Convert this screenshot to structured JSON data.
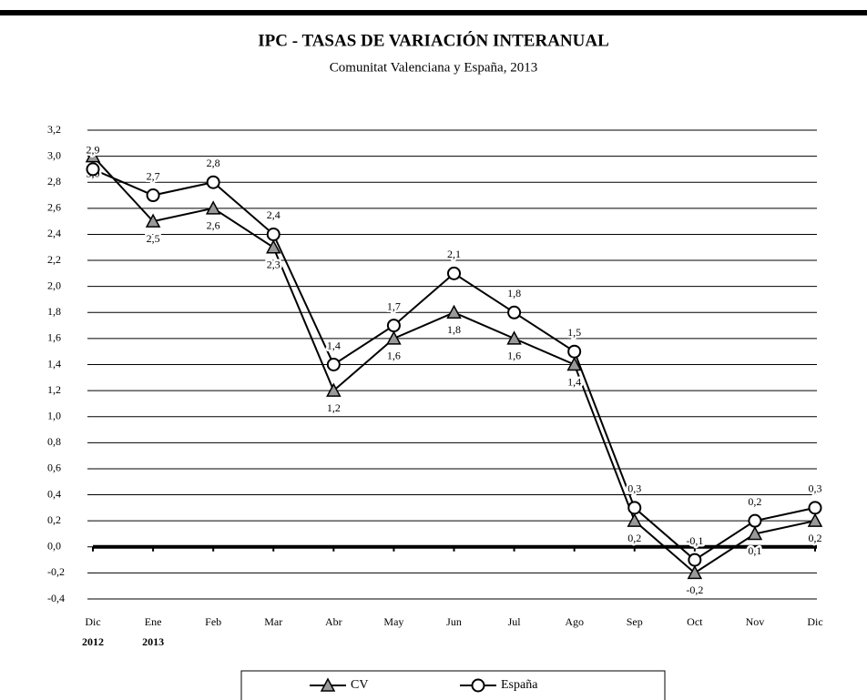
{
  "chart_data": {
    "type": "line",
    "title": "IPC - TASAS DE VARIACIÓN INTERANUAL",
    "subtitle": "Comunitat Valenciana y España, 2013",
    "categories": [
      "Dic",
      "Ene",
      "Feb",
      "Mar",
      "Abr",
      "May",
      "Jun",
      "Jul",
      "Ago",
      "Sep",
      "Oct",
      "Nov",
      "Dic"
    ],
    "year_labels": [
      "2012",
      "2013"
    ],
    "series": [
      {
        "name": "CV",
        "color": "#000000",
        "marker": "triangle",
        "values": [
          3.0,
          2.5,
          2.6,
          2.3,
          1.2,
          1.6,
          1.8,
          1.6,
          1.4,
          0.2,
          -0.2,
          0.1,
          0.2
        ],
        "value_labels": [
          "3,0",
          "2,5",
          "2,6",
          "2,3",
          "1,2",
          "1,6",
          "1,8",
          "1,6",
          "1,4",
          "0,2",
          "-0,2",
          "0,1",
          "0,2"
        ]
      },
      {
        "name": "España",
        "color": "#000000",
        "marker": "circle",
        "values": [
          2.9,
          2.7,
          2.8,
          2.4,
          1.4,
          1.7,
          2.1,
          1.8,
          1.5,
          0.3,
          -0.1,
          0.2,
          0.3
        ],
        "value_labels": [
          "2,9",
          "2,7",
          "2,8",
          "2,4",
          "1,4",
          "1,7",
          "2,1",
          "1,8",
          "1,5",
          "0,3",
          "-0,1",
          "0,2",
          "0,3"
        ]
      }
    ],
    "ylim": [
      -0.4,
      3.2
    ],
    "yticks": [
      {
        "value": -0.4,
        "label": "-0,4"
      },
      {
        "value": -0.2,
        "label": "-0,2"
      },
      {
        "value": 0.0,
        "label": "0,0"
      },
      {
        "value": 0.2,
        "label": "0,2"
      },
      {
        "value": 0.4,
        "label": "0,4"
      },
      {
        "value": 0.6,
        "label": "0,6"
      },
      {
        "value": 0.8,
        "label": "0,8"
      },
      {
        "value": 1.0,
        "label": "1,0"
      },
      {
        "value": 1.2,
        "label": "1,2"
      },
      {
        "value": 1.4,
        "label": "1,4"
      },
      {
        "value": 1.6,
        "label": "1,6"
      },
      {
        "value": 1.8,
        "label": "1,8"
      },
      {
        "value": 2.0,
        "label": "2,0"
      },
      {
        "value": 2.2,
        "label": "2,2"
      },
      {
        "value": 2.4,
        "label": "2,4"
      },
      {
        "value": 2.6,
        "label": "2,6"
      },
      {
        "value": 2.8,
        "label": "2,8"
      },
      {
        "value": 3.0,
        "label": "3,0"
      },
      {
        "value": 3.2,
        "label": "3,2"
      }
    ],
    "grid": true,
    "legend": "bottom"
  }
}
